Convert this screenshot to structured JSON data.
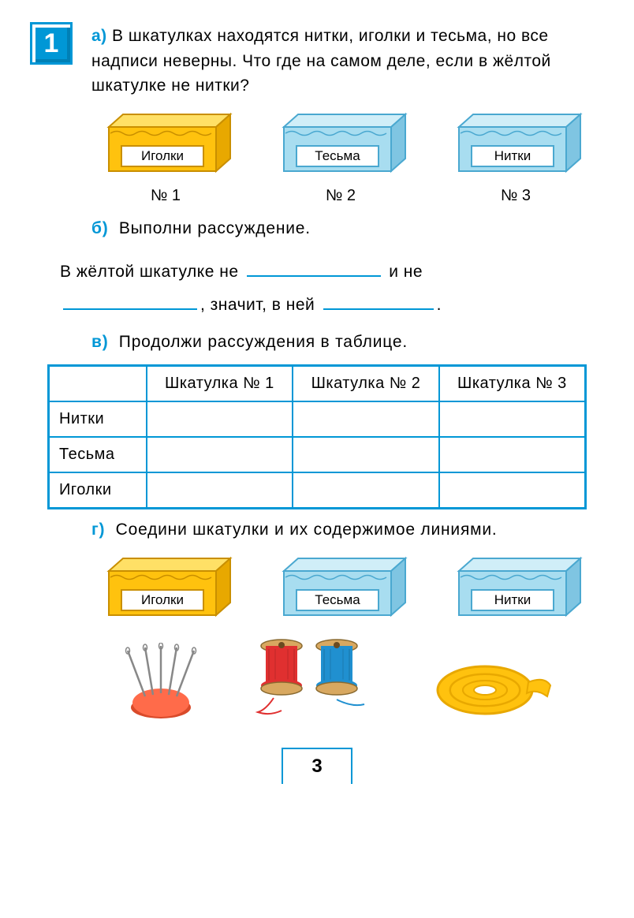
{
  "problem_number": "1",
  "part_a": {
    "label": "а)",
    "text": "В шкатулках находятся нитки, иголки и тесьма, но все надписи неверны. Что где на самом деле, если в жёлтой шкатулке не нитки?"
  },
  "boxes": [
    {
      "label": "Иголки",
      "number": "№ 1",
      "body": "#ffc20e",
      "top": "#ffe066",
      "side": "#e8a800",
      "edge": "#c98f00"
    },
    {
      "label": "Тесьма",
      "number": "№ 2",
      "body": "#a8ddf0",
      "top": "#d0eef8",
      "side": "#7fc5e2",
      "edge": "#4aa8d0"
    },
    {
      "label": "Нитки",
      "number": "№ 3",
      "body": "#a8ddf0",
      "top": "#d0eef8",
      "side": "#7fc5e2",
      "edge": "#4aa8d0"
    }
  ],
  "part_b": {
    "label": "б)",
    "text": "Выполни рассуждение.",
    "line1_pre": "В жёлтой шкатулке не",
    "line1_post": "и не",
    "line2_mid": ", значит, в ней",
    "line2_end": "."
  },
  "part_c": {
    "label": "в)",
    "text": "Продолжи рассуждения в таблице."
  },
  "table": {
    "headers": [
      "",
      "Шкатулка № 1",
      "Шкатулка № 2",
      "Шкатулка № 3"
    ],
    "rows": [
      "Нитки",
      "Тесьма",
      "Иголки"
    ]
  },
  "part_d": {
    "label": "г)",
    "text": "Соедини шкатулки и их содержимое линиями."
  },
  "items": {
    "needles_colors": {
      "cushion": "#ff6b4a",
      "cushion_shadow": "#d94a2a",
      "needle": "#888888"
    },
    "spools": [
      {
        "thread": "#e03030",
        "spool": "#d8a860"
      },
      {
        "thread": "#2090d0",
        "spool": "#d8a860"
      }
    ],
    "tape": {
      "main": "#ffc20e",
      "edge": "#e8a800"
    }
  },
  "page_number": "3"
}
